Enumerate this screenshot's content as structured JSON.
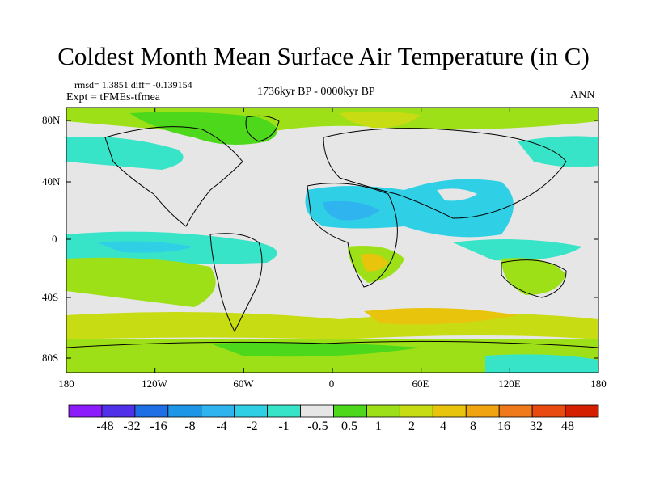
{
  "title": "Coldest Month Mean Surface Air Temperature (in C)",
  "stats": "rmsd= 1.3851 diff= -0.139154",
  "experiment": "Expt = tFMEs-tfmea",
  "period": "1736kyr BP - 0000kyr BP",
  "season": "ANN",
  "lat_ticks": [
    "80N",
    "40N",
    "0",
    "40S",
    "80S"
  ],
  "lon_ticks": [
    "180",
    "120W",
    "60W",
    "0",
    "60E",
    "120E",
    "180"
  ],
  "colorbar": {
    "colors": [
      "#8c1cfc",
      "#5030e8",
      "#1e6ee6",
      "#1e96e8",
      "#30b4f0",
      "#2fd0e6",
      "#38e4c8",
      "#e6e6e6",
      "#4ed81c",
      "#9ee018",
      "#c8dc14",
      "#e8c40c",
      "#f0a410",
      "#f07a1a",
      "#e84a10",
      "#d42000"
    ],
    "labels": [
      "-48",
      "-32",
      "-16",
      "-8",
      "-4",
      "-2",
      "-1",
      "-0.5",
      "0.5",
      "1",
      "2",
      "4",
      "8",
      "16",
      "32",
      "48"
    ]
  }
}
